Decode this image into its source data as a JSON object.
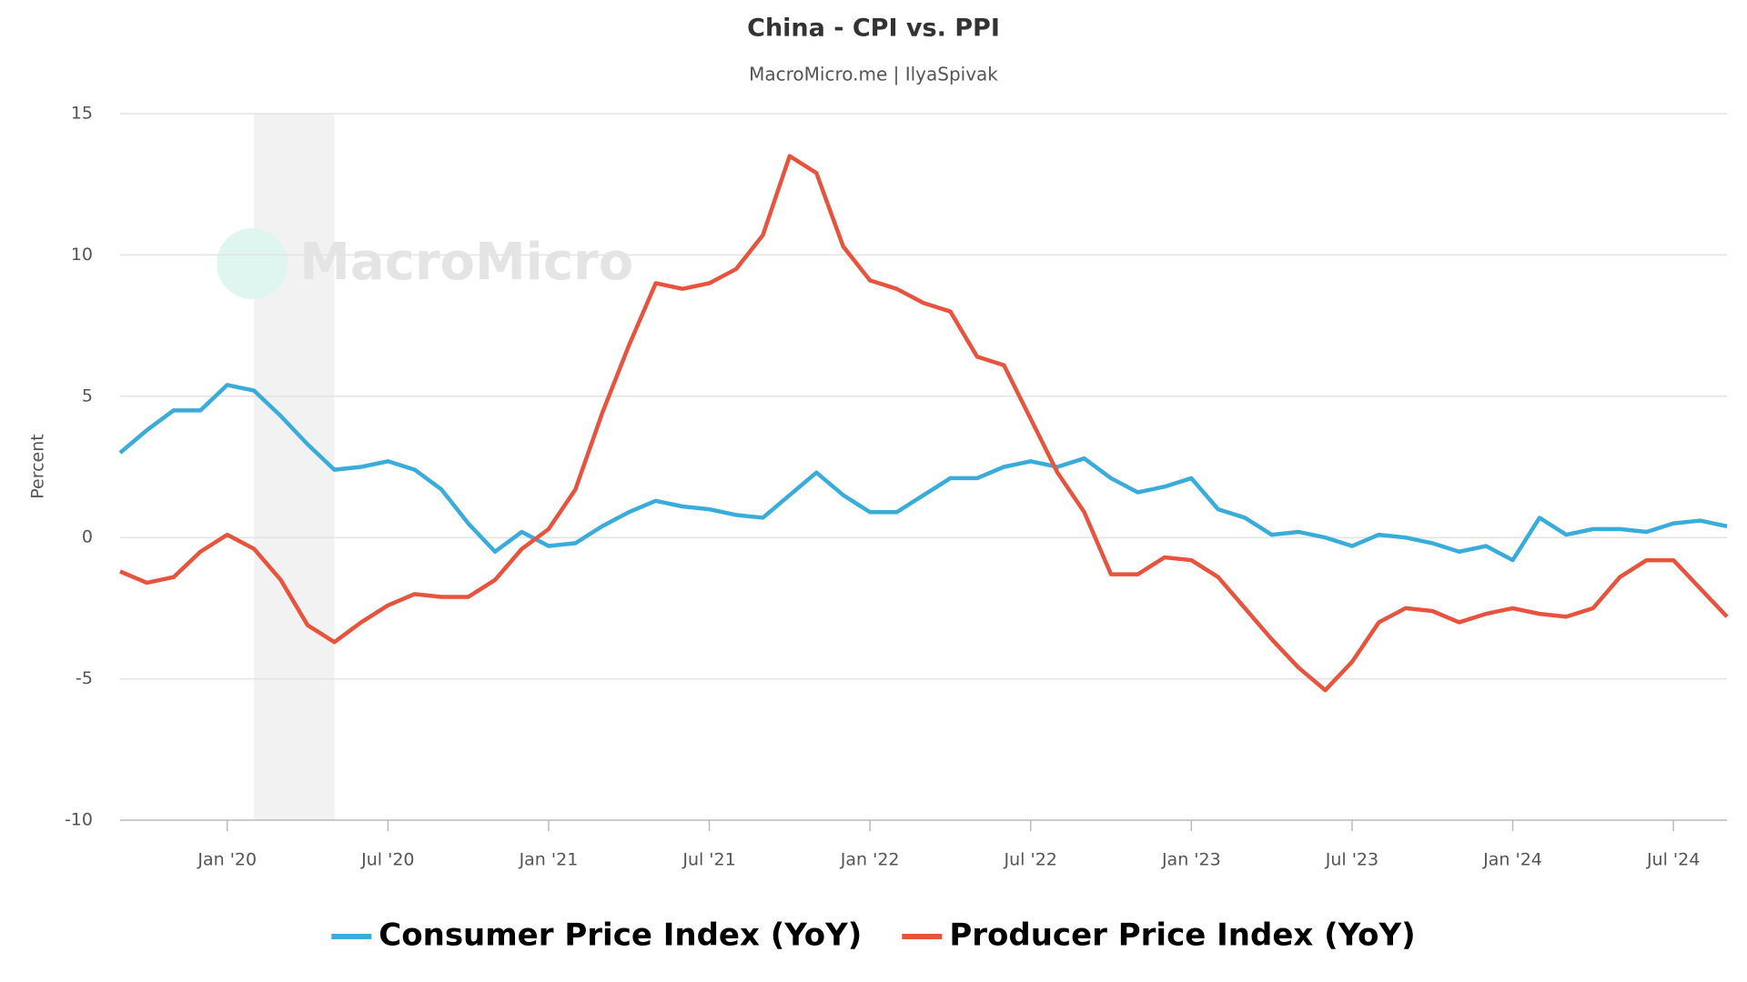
{
  "chart_data": {
    "type": "line",
    "title": "China - CPI vs. PPI",
    "subtitle": "MacroMicro.me | IlyaSpivak",
    "watermark": "MacroMicro",
    "ylabel": "Percent",
    "x": [
      "2019-09",
      "2019-10",
      "2019-11",
      "2019-12",
      "2020-01",
      "2020-02",
      "2020-03",
      "2020-04",
      "2020-05",
      "2020-06",
      "2020-07",
      "2020-08",
      "2020-09",
      "2020-10",
      "2020-11",
      "2020-12",
      "2021-01",
      "2021-02",
      "2021-03",
      "2021-04",
      "2021-05",
      "2021-06",
      "2021-07",
      "2021-08",
      "2021-09",
      "2021-10",
      "2021-11",
      "2021-12",
      "2022-01",
      "2022-02",
      "2022-03",
      "2022-04",
      "2022-05",
      "2022-06",
      "2022-07",
      "2022-08",
      "2022-09",
      "2022-10",
      "2022-11",
      "2022-12",
      "2023-01",
      "2023-02",
      "2023-03",
      "2023-04",
      "2023-05",
      "2023-06",
      "2023-07",
      "2023-08",
      "2023-09",
      "2023-10",
      "2023-11",
      "2023-12",
      "2024-01",
      "2024-02",
      "2024-03",
      "2024-04",
      "2024-05",
      "2024-06",
      "2024-07",
      "2024-08",
      "2024-09"
    ],
    "series": [
      {
        "name": "Consumer Price Index (YoY)",
        "color": "#3aacdc",
        "values": [
          3.0,
          3.8,
          4.5,
          4.5,
          5.4,
          5.2,
          4.3,
          3.3,
          2.4,
          2.5,
          2.7,
          2.4,
          1.7,
          0.5,
          -0.5,
          0.2,
          -0.3,
          -0.2,
          0.4,
          0.9,
          1.3,
          1.1,
          1.0,
          0.8,
          0.7,
          1.5,
          2.3,
          1.5,
          0.9,
          0.9,
          1.5,
          2.1,
          2.1,
          2.5,
          2.7,
          2.5,
          2.8,
          2.1,
          1.6,
          1.8,
          2.1,
          1.0,
          0.7,
          0.1,
          0.2,
          0.0,
          -0.3,
          0.1,
          0.0,
          -0.2,
          -0.5,
          -0.3,
          -0.8,
          0.7,
          0.1,
          0.3,
          0.3,
          0.2,
          0.5,
          0.6,
          0.4
        ]
      },
      {
        "name": "Producer Price Index (YoY)",
        "color": "#e8533d",
        "values": [
          -1.2,
          -1.6,
          -1.4,
          -0.5,
          0.1,
          -0.4,
          -1.5,
          -3.1,
          -3.7,
          -3.0,
          -2.4,
          -2.0,
          -2.1,
          -2.1,
          -1.5,
          -0.4,
          0.3,
          1.7,
          4.4,
          6.8,
          9.0,
          8.8,
          9.0,
          9.5,
          10.7,
          13.5,
          12.9,
          10.3,
          9.1,
          8.8,
          8.3,
          8.0,
          6.4,
          6.1,
          4.2,
          2.3,
          0.9,
          -1.3,
          -1.3,
          -0.7,
          -0.8,
          -1.4,
          -2.5,
          -3.6,
          -4.6,
          -5.4,
          -4.4,
          -3.0,
          -2.5,
          -2.6,
          -3.0,
          -2.7,
          -2.5,
          -2.7,
          -2.8,
          -2.5,
          -1.4,
          -0.8,
          -0.8,
          -1.8,
          -2.8
        ]
      }
    ],
    "xlim": [
      "2019-09",
      "2024-09"
    ],
    "xticks": [
      {
        "value": "2020-01",
        "label": "Jan '20"
      },
      {
        "value": "2020-07",
        "label": "Jul '20"
      },
      {
        "value": "2021-01",
        "label": "Jan '21"
      },
      {
        "value": "2021-07",
        "label": "Jul '21"
      },
      {
        "value": "2022-01",
        "label": "Jan '22"
      },
      {
        "value": "2022-07",
        "label": "Jul '22"
      },
      {
        "value": "2023-01",
        "label": "Jan '23"
      },
      {
        "value": "2023-07",
        "label": "Jul '23"
      },
      {
        "value": "2024-01",
        "label": "Jan '24"
      },
      {
        "value": "2024-07",
        "label": "Jul '24"
      }
    ],
    "ylim": [
      -10,
      15
    ],
    "yticks": [
      -10,
      -5,
      0,
      5,
      10,
      15
    ],
    "grid": true,
    "shaded": {
      "from": "2020-02",
      "to": "2020-05",
      "color": "#f2f2f2"
    },
    "legend": "bottom"
  }
}
